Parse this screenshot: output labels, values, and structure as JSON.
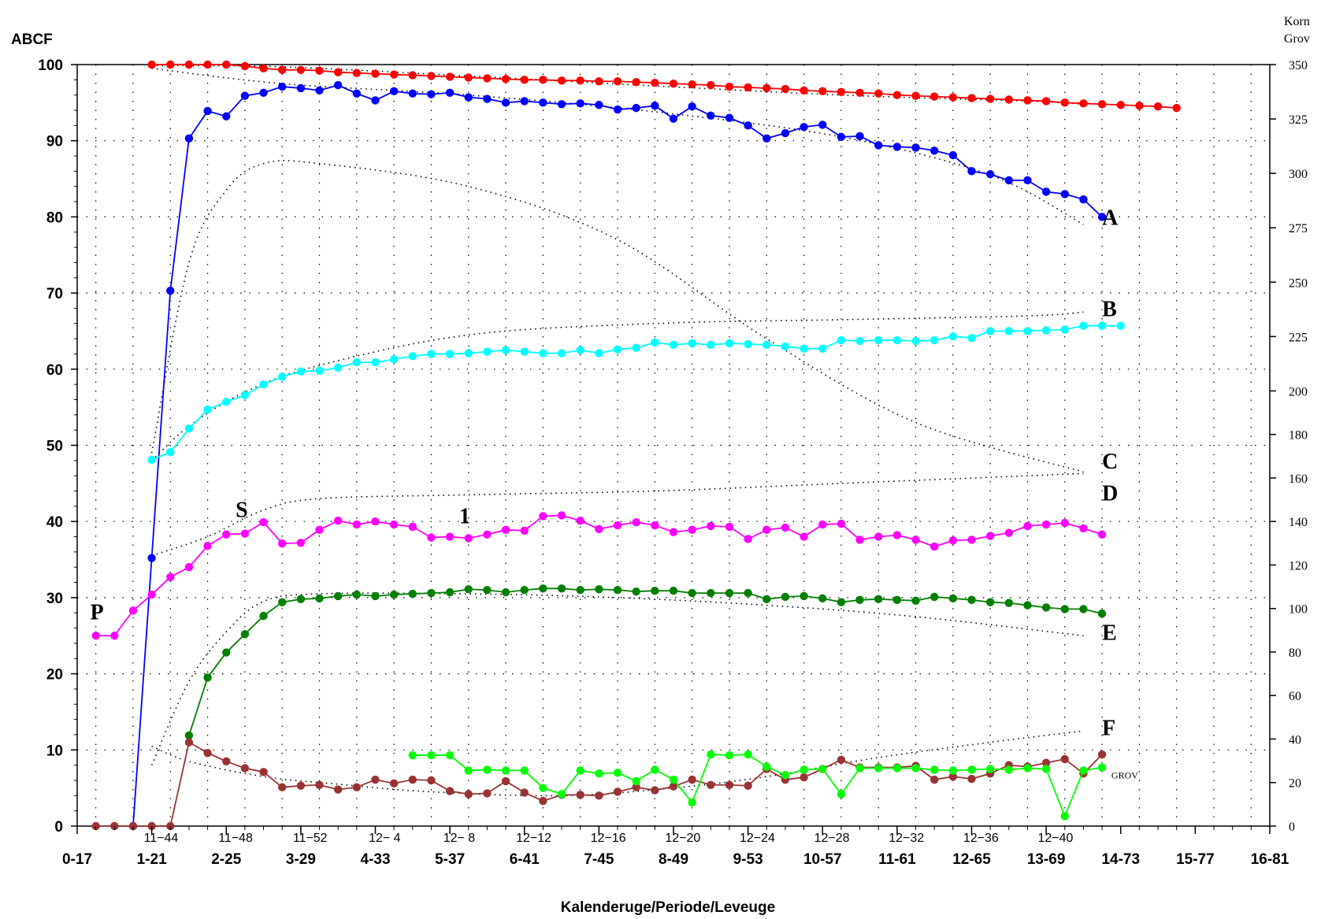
{
  "chart_data": {
    "type": "line",
    "ylabel_left": "ABCF",
    "ylabel_right_line1": "Korn",
    "ylabel_right_line2": "Grov",
    "xlabel": "Kalenderuge/Periode/Leveuge",
    "ylim_left": [
      0,
      100
    ],
    "ylim_right": [
      0,
      350
    ],
    "grid": true,
    "left_ticks": [
      "0",
      "10",
      "20",
      "30",
      "40",
      "50",
      "60",
      "70",
      "80",
      "90",
      "100"
    ],
    "right_ticks": [
      {
        "v": 0,
        "label": "0"
      },
      {
        "v": 20,
        "label": "20"
      },
      {
        "v": 40,
        "label": "40"
      },
      {
        "v": 60,
        "label": "60"
      },
      {
        "v": 80,
        "label": "80"
      },
      {
        "v": 100,
        "label": "100"
      },
      {
        "v": 120,
        "label": "120"
      },
      {
        "v": 140,
        "label": "140"
      },
      {
        "v": 160,
        "label": "160"
      },
      {
        "v": 180,
        "label": "180"
      },
      {
        "v": 200,
        "label": "200"
      },
      {
        "v": 225,
        "label": "225"
      },
      {
        "v": 250,
        "label": "250"
      },
      {
        "v": 275,
        "label": "275"
      },
      {
        "v": 300,
        "label": "300"
      },
      {
        "v": 325,
        "label": "325"
      },
      {
        "v": 350,
        "label": "350"
      }
    ],
    "x_period_ticks": [
      "0-17",
      "1-21",
      "2-25",
      "3-29",
      "4-33",
      "5-37",
      "6-41",
      "7-45",
      "8-49",
      "9-53",
      "10-57",
      "11-61",
      "12-65",
      "13-69",
      "14-73",
      "15-77",
      "16-81"
    ],
    "x_week_ticks": [
      {
        "x": 3.5,
        "label": "11−44"
      },
      {
        "x": 7.5,
        "label": "11−48"
      },
      {
        "x": 11.5,
        "label": "11−52"
      },
      {
        "x": 15.5,
        "label": "12− 4"
      },
      {
        "x": 19.5,
        "label": "12− 8"
      },
      {
        "x": 23.5,
        "label": "12−12"
      },
      {
        "x": 27.5,
        "label": "12−16"
      },
      {
        "x": 31.5,
        "label": "12−20"
      },
      {
        "x": 35.5,
        "label": "12−24"
      },
      {
        "x": 39.5,
        "label": "12−28"
      },
      {
        "x": 43.5,
        "label": "12−32"
      },
      {
        "x": 47.5,
        "label": "12−36"
      },
      {
        "x": 51.5,
        "label": "12−40"
      }
    ],
    "xlim": [
      -1,
      63
    ],
    "series": [
      {
        "id": "A-red",
        "color": "#ff0000",
        "x0": 3,
        "values": [
          100,
          100,
          100,
          100,
          100,
          99.8,
          99.5,
          99.3,
          99.3,
          99.2,
          99.0,
          98.9,
          98.8,
          98.7,
          98.6,
          98.5,
          98.4,
          98.3,
          98.2,
          98.1,
          98.0,
          98.0,
          97.9,
          97.9,
          97.8,
          97.8,
          97.7,
          97.6,
          97.5,
          97.4,
          97.3,
          97.1,
          97.0,
          96.9,
          96.8,
          96.6,
          96.5,
          96.4,
          96.3,
          96.2,
          96.0,
          95.9,
          95.8,
          95.7,
          95.6,
          95.5,
          95.4,
          95.3,
          95.2,
          95.0,
          94.9,
          94.8,
          94.7,
          94.6,
          94.5,
          94.3
        ]
      },
      {
        "id": "A-blue",
        "color": "#0000ff",
        "x0": 2,
        "values": [
          0,
          35.2,
          70.3,
          90.3,
          93.9,
          93.2,
          95.9,
          96.3,
          97.1,
          96.9,
          96.6,
          97.3,
          96.2,
          95.3,
          96.5,
          96.2,
          96.1,
          96.3,
          95.7,
          95.5,
          95.0,
          95.2,
          95.0,
          94.8,
          94.9,
          94.7,
          94.1,
          94.3,
          94.6,
          92.9,
          94.5,
          93.3,
          93.0,
          92.0,
          90.3,
          91.0,
          91.8,
          92.1,
          90.5,
          90.6,
          89.4,
          89.2,
          89.1,
          88.7,
          88.1,
          86.0,
          85.6,
          84.8,
          84.8,
          83.3,
          83.0,
          82.3,
          80.0
        ]
      },
      {
        "id": "B-cyan",
        "color": "#00ffff",
        "x0": 3,
        "values": [
          48.1,
          49.1,
          52.2,
          54.7,
          55.7,
          56.6,
          58.0,
          59.0,
          59.7,
          59.8,
          60.2,
          60.9,
          60.9,
          61.3,
          61.7,
          62.0,
          62.0,
          62.1,
          62.3,
          62.5,
          62.3,
          62.1,
          62.1,
          62.5,
          62.1,
          62.6,
          62.8,
          63.5,
          63.2,
          63.4,
          63.2,
          63.4,
          63.3,
          63.2,
          63.0,
          62.7,
          62.7,
          63.8,
          63.7,
          63.8,
          63.8,
          63.7,
          63.8,
          64.3,
          64.1,
          65.0,
          65.0,
          65.0,
          65.1,
          65.2,
          65.7,
          65.7,
          65.7
        ]
      },
      {
        "id": "D-magenta",
        "color": "#ff00ff",
        "x0": 0,
        "values": [
          25.0,
          25.0,
          28.3,
          30.4,
          32.7,
          34.0,
          36.8,
          38.3,
          38.4,
          39.9,
          37.1,
          37.2,
          38.9,
          40.1,
          39.6,
          40.0,
          39.6,
          39.3,
          37.9,
          38.0,
          37.8,
          38.3,
          38.9,
          38.8,
          40.7,
          40.8,
          40.1,
          39.0,
          39.5,
          39.9,
          39.5,
          38.6,
          38.9,
          39.4,
          39.3,
          37.7,
          38.9,
          39.2,
          38.0,
          39.6,
          39.7,
          37.6,
          38.0,
          38.2,
          37.6,
          36.7,
          37.5,
          37.6,
          38.1,
          38.5,
          39.4,
          39.6,
          39.8,
          39.1,
          38.3
        ]
      },
      {
        "id": "E-green",
        "color": "#008000",
        "x0": 5,
        "values": [
          11.9,
          19.5,
          22.8,
          25.2,
          27.6,
          29.4,
          29.8,
          29.9,
          30.2,
          30.4,
          30.2,
          30.4,
          30.5,
          30.6,
          30.7,
          31.1,
          31.0,
          30.7,
          31.0,
          31.2,
          31.2,
          31.0,
          31.1,
          31.0,
          30.8,
          30.9,
          30.9,
          30.6,
          30.6,
          30.6,
          30.6,
          29.8,
          30.1,
          30.2,
          29.9,
          29.4,
          29.7,
          29.8,
          29.7,
          29.6,
          30.1,
          29.9,
          29.7,
          29.4,
          29.3,
          29.0,
          28.7,
          28.5,
          28.5,
          27.9
        ]
      },
      {
        "id": "F-brown",
        "color": "#993333",
        "x0": 0,
        "values": [
          0,
          0,
          0,
          0,
          0,
          11.0,
          9.6,
          8.5,
          7.6,
          7.1,
          5.1,
          5.3,
          5.4,
          4.8,
          5.1,
          6.1,
          5.6,
          6.1,
          6.0,
          4.6,
          4.2,
          4.3,
          5.9,
          4.4,
          3.3,
          4.1,
          4.1,
          4.0,
          4.5,
          5.1,
          4.7,
          5.2,
          6.1,
          5.4,
          5.4,
          5.3,
          7.5,
          6.1,
          6.4,
          7.5,
          8.7,
          7.7,
          7.7,
          7.7,
          7.9,
          6.1,
          6.5,
          6.2,
          6.9,
          8.0,
          7.8,
          8.3,
          8.8,
          6.9,
          9.4
        ]
      },
      {
        "id": "Grov-lime",
        "color": "#00ff00",
        "x0": 17,
        "values": [
          9.3,
          9.3,
          9.3,
          7.3,
          7.4,
          7.3,
          7.3,
          5.0,
          4.2,
          7.3,
          6.9,
          7.0,
          5.9,
          7.4,
          6.1,
          3.1,
          9.4,
          9.3,
          9.4,
          7.8,
          6.7,
          7.4,
          7.5,
          4.2,
          7.6,
          7.6,
          7.6,
          7.6,
          7.4,
          7.3,
          7.4,
          7.5,
          7.4,
          7.6,
          7.5,
          1.3,
          7.3,
          7.7
        ]
      }
    ],
    "norm_curves": [
      {
        "id": "A-norm-red",
        "pts": [
          [
            3,
            99.9
          ],
          [
            10,
            99.7
          ],
          [
            20,
            98.5
          ],
          [
            30,
            97.2
          ],
          [
            40,
            96.0
          ],
          [
            50,
            95.2
          ],
          [
            53,
            94.8
          ]
        ]
      },
      {
        "id": "A-norm",
        "pts": [
          [
            3,
            99.5
          ],
          [
            10,
            97.5
          ],
          [
            20,
            96.0
          ],
          [
            30,
            93.8
          ],
          [
            40,
            90.5
          ],
          [
            48,
            85.5
          ],
          [
            53,
            79.0
          ]
        ]
      },
      {
        "id": "B-norm",
        "pts": [
          [
            3,
            48.0
          ],
          [
            5,
            52.5
          ],
          [
            8,
            57.0
          ],
          [
            12,
            60.5
          ],
          [
            20,
            64.5
          ],
          [
            30,
            66.0
          ],
          [
            40,
            66.5
          ],
          [
            50,
            67.0
          ],
          [
            53,
            67.5
          ]
        ]
      },
      {
        "id": "C-norm",
        "pts": [
          [
            3,
            49.0
          ],
          [
            5,
            74.0
          ],
          [
            7,
            83.5
          ],
          [
            9,
            87.0
          ],
          [
            12,
            87.0
          ],
          [
            20,
            84.0
          ],
          [
            28,
            77.0
          ],
          [
            36,
            64.0
          ],
          [
            44,
            53.0
          ],
          [
            53,
            46.5
          ]
        ]
      },
      {
        "id": "D-norm",
        "pts": [
          [
            3,
            35.5
          ],
          [
            6,
            38.0
          ],
          [
            9,
            41.5
          ],
          [
            12,
            43.0
          ],
          [
            20,
            43.5
          ],
          [
            30,
            44.0
          ],
          [
            40,
            45.0
          ],
          [
            50,
            46.0
          ],
          [
            53,
            46.3
          ]
        ]
      },
      {
        "id": "E-norm",
        "pts": [
          [
            3,
            8.0
          ],
          [
            5,
            19.0
          ],
          [
            7,
            25.5
          ],
          [
            9,
            29.5
          ],
          [
            12,
            30.5
          ],
          [
            20,
            30.5
          ],
          [
            28,
            30.0
          ],
          [
            36,
            29.0
          ],
          [
            44,
            27.5
          ],
          [
            53,
            25.0
          ]
        ]
      },
      {
        "id": "F-norm",
        "pts": [
          [
            3,
            10.5
          ],
          [
            5,
            8.5
          ],
          [
            9,
            6.5
          ],
          [
            13,
            5.5
          ],
          [
            18,
            4.5
          ],
          [
            25,
            4.0
          ],
          [
            31,
            5.0
          ],
          [
            36,
            6.5
          ],
          [
            42,
            9.0
          ],
          [
            48,
            11.0
          ],
          [
            53,
            12.5
          ]
        ]
      }
    ],
    "annotations": [
      {
        "text": "A",
        "x": 54,
        "y": 80,
        "cls": "curve-label"
      },
      {
        "text": "B",
        "x": 54,
        "y": 68,
        "cls": "curve-label"
      },
      {
        "text": "C",
        "x": 54,
        "y": 48,
        "cls": "curve-label"
      },
      {
        "text": "D",
        "x": 54,
        "y": 43.8,
        "cls": "curve-label"
      },
      {
        "text": "E",
        "x": 54,
        "y": 25.5,
        "cls": "curve-label"
      },
      {
        "text": "F",
        "x": 54,
        "y": 13.0,
        "cls": "curve-label"
      },
      {
        "text": "P",
        "x": -0.3,
        "y": 28.2,
        "cls": "curve-label"
      },
      {
        "text": "S",
        "x": 7.5,
        "y": 41.6,
        "cls": "curve-label"
      },
      {
        "text": "1",
        "x": 19.5,
        "y": 40.8,
        "cls": "curve-label"
      },
      {
        "text": "GROV",
        "x": 54.5,
        "y": 7.3,
        "cls": "small-label"
      }
    ]
  }
}
